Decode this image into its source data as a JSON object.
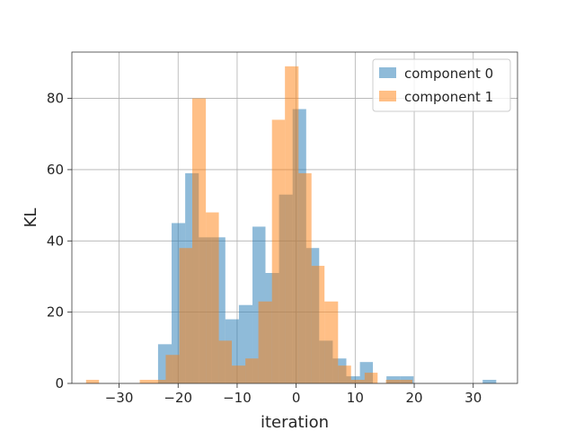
{
  "chart_data": {
    "type": "histogram",
    "xlabel": "iteration",
    "ylabel": "KL",
    "xlim": [
      -38,
      37.5
    ],
    "ylim": [
      0,
      93
    ],
    "xticks": [
      -30,
      -20,
      -10,
      0,
      10,
      20,
      30
    ],
    "yticks": [
      0,
      20,
      40,
      60,
      80
    ],
    "grid": true,
    "legend_position": "top-right",
    "series": [
      {
        "name": "component 0",
        "color": "#1f77b4",
        "alpha": 0.5,
        "bins": [
          [
            -23.4,
            -21.1,
            11
          ],
          [
            -21.1,
            -18.8,
            45
          ],
          [
            -18.8,
            -16.5,
            59
          ],
          [
            -16.5,
            -14.3,
            41
          ],
          [
            -14.3,
            -12.0,
            41
          ],
          [
            -12.0,
            -9.7,
            18
          ],
          [
            -9.7,
            -7.4,
            22
          ],
          [
            -7.4,
            -5.2,
            44
          ],
          [
            -5.2,
            -2.9,
            31
          ],
          [
            -2.9,
            -0.6,
            53
          ],
          [
            -0.6,
            1.7,
            77
          ],
          [
            1.7,
            3.9,
            38
          ],
          [
            3.9,
            6.2,
            12
          ],
          [
            6.2,
            8.5,
            7
          ],
          [
            8.5,
            10.8,
            2
          ],
          [
            10.8,
            13.0,
            6
          ],
          [
            13.0,
            15.3,
            0
          ],
          [
            15.3,
            17.6,
            2
          ],
          [
            17.6,
            19.9,
            2
          ],
          [
            31.6,
            33.9,
            1
          ]
        ]
      },
      {
        "name": "component 1",
        "color": "#ff7f0e",
        "alpha": 0.5,
        "bins": [
          [
            -35.6,
            -33.4,
            1
          ],
          [
            -26.5,
            -24.3,
            1
          ],
          [
            -24.3,
            -22.1,
            1
          ],
          [
            -22.1,
            -19.8,
            8
          ],
          [
            -19.8,
            -17.6,
            38
          ],
          [
            -17.6,
            -15.3,
            80
          ],
          [
            -15.3,
            -13.1,
            48
          ],
          [
            -13.1,
            -10.9,
            12
          ],
          [
            -10.9,
            -8.6,
            5
          ],
          [
            -8.6,
            -6.4,
            7
          ],
          [
            -6.4,
            -4.1,
            23
          ],
          [
            -4.1,
            -1.9,
            74
          ],
          [
            -1.9,
            0.4,
            89
          ],
          [
            0.4,
            2.6,
            59
          ],
          [
            2.6,
            4.8,
            33
          ],
          [
            4.8,
            7.1,
            23
          ],
          [
            7.1,
            9.3,
            5
          ],
          [
            9.3,
            11.6,
            1
          ],
          [
            11.6,
            13.8,
            3
          ],
          [
            15.2,
            17.5,
            1
          ],
          [
            17.5,
            19.7,
            1
          ]
        ]
      }
    ]
  }
}
